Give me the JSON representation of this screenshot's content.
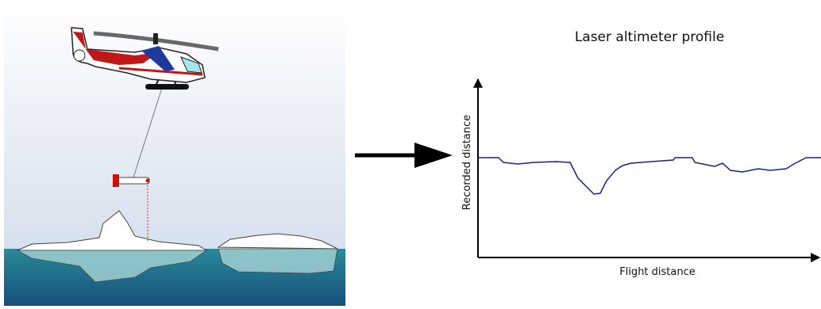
{
  "plot": {
    "title": "Laser altimeter profile",
    "x_label": "Flight distance",
    "y_label": "Recorded distance"
  }
}
